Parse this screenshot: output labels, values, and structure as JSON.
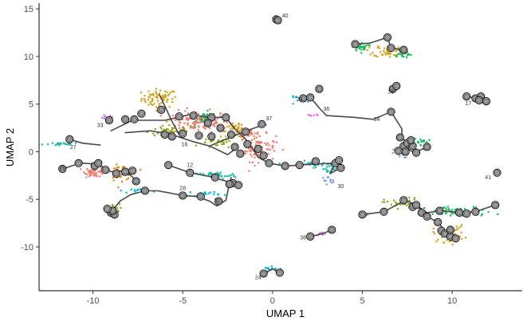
{
  "chart_data": {
    "type": "scatter",
    "xlabel": "UMAP 1",
    "ylabel": "UMAP 2",
    "xlim": [
      -13,
      13.9
    ],
    "ylim": [
      -14.6,
      15.6
    ],
    "xticks": [
      -10,
      -5,
      0,
      5,
      10
    ],
    "xtick_labels": [
      "-10",
      "-5",
      "0",
      "5",
      "10"
    ],
    "yticks": [
      -10,
      -5,
      0,
      5,
      10,
      15
    ],
    "ytick_labels": [
      "-10",
      "-5",
      "0",
      "5",
      "10",
      "15"
    ],
    "grid": false,
    "legend": "none",
    "clusters": [
      {
        "color": "#d3a01c",
        "cx": -6.3,
        "cy": 5.6,
        "sx": 0.9,
        "sy": 0.9,
        "n": 70
      },
      {
        "color": "#f37b6e",
        "cx": -4.2,
        "cy": 3.2,
        "sx": 1.6,
        "sy": 1.0,
        "n": 130
      },
      {
        "color": "#f37b6e",
        "cx": -0.8,
        "cy": 0.4,
        "sx": 0.9,
        "sy": 1.3,
        "n": 90
      },
      {
        "color": "#d3a01c",
        "cx": -2.0,
        "cy": 2.2,
        "sx": 0.8,
        "sy": 0.6,
        "n": 40
      },
      {
        "color": "#93a61b",
        "cx": -5.6,
        "cy": 2.1,
        "sx": 1.2,
        "sy": 0.6,
        "n": 60
      },
      {
        "color": "#93a61b",
        "cx": -3.1,
        "cy": 0.9,
        "sx": 0.8,
        "sy": 0.5,
        "n": 30
      },
      {
        "color": "#19b65a",
        "cx": -3.7,
        "cy": 3.5,
        "sx": 0.5,
        "sy": 0.6,
        "n": 30
      },
      {
        "color": "#f37b6e",
        "cx": -9.9,
        "cy": -2.1,
        "sx": 0.5,
        "sy": 0.5,
        "n": 50
      },
      {
        "color": "#e8841a",
        "cx": -8.4,
        "cy": -2.2,
        "sx": 0.6,
        "sy": 0.7,
        "n": 50
      },
      {
        "color": "#93a61b",
        "cx": -8.9,
        "cy": -6.0,
        "sx": 0.35,
        "sy": 0.45,
        "n": 30
      },
      {
        "color": "#1fb8ad",
        "cx": -3.2,
        "cy": -2.5,
        "sx": 1.1,
        "sy": 0.35,
        "n": 45
      },
      {
        "color": "#f37b6e",
        "cx": -1.3,
        "cy": 2.0,
        "sx": 0.4,
        "sy": 0.4,
        "n": 25
      },
      {
        "color": "#19b65a",
        "cx": 5.0,
        "cy": 11.0,
        "sx": 0.5,
        "sy": 0.4,
        "n": 30
      },
      {
        "color": "#d3a01c",
        "cx": 6.4,
        "cy": 10.6,
        "sx": 0.7,
        "sy": 0.6,
        "n": 45
      },
      {
        "color": "#19b65a",
        "cx": 7.2,
        "cy": 10.3,
        "sx": 0.5,
        "sy": 0.5,
        "n": 25
      },
      {
        "color": "#19b65a",
        "cx": 11.4,
        "cy": 5.4,
        "sx": 0.4,
        "sy": 0.2,
        "n": 20
      },
      {
        "color": "#8a9fee",
        "cx": 7.1,
        "cy": -0.2,
        "sx": 0.4,
        "sy": 0.4,
        "n": 25
      },
      {
        "color": "#19b65a",
        "cx": 8.0,
        "cy": 1.0,
        "sx": 0.6,
        "sy": 0.4,
        "n": 25
      },
      {
        "color": "#93a61b",
        "cx": 7.2,
        "cy": -5.4,
        "sx": 0.9,
        "sy": 0.5,
        "n": 35
      },
      {
        "color": "#19b65a",
        "cx": 10.4,
        "cy": -6.3,
        "sx": 1.7,
        "sy": 0.5,
        "n": 65
      },
      {
        "color": "#d3a01c",
        "cx": 9.8,
        "cy": -8.6,
        "sx": 0.8,
        "sy": 0.8,
        "n": 50
      },
      {
        "color": "#1fb8ad",
        "cx": 2.2,
        "cy": -1.3,
        "sx": 1.1,
        "sy": 0.3,
        "n": 30
      },
      {
        "color": "#1fb8ad",
        "cx": 3.2,
        "cy": -1.8,
        "sx": 0.4,
        "sy": 0.5,
        "n": 20
      },
      {
        "color": "#8a9fee",
        "cx": 3.1,
        "cy": -3.0,
        "sx": 0.3,
        "sy": 0.3,
        "n": 12
      },
      {
        "color": "#1fb8ad",
        "cx": -11.6,
        "cy": 0.8,
        "sx": 1.0,
        "sy": 0.15,
        "n": 20
      },
      {
        "color": "#00b2e0",
        "cx": 1.6,
        "cy": 5.5,
        "sx": 0.6,
        "sy": 0.3,
        "n": 15
      },
      {
        "color": "#00b2e0",
        "cx": -7.2,
        "cy": -4.1,
        "sx": 0.6,
        "sy": 0.2,
        "n": 15
      },
      {
        "color": "#00b2e0",
        "cx": -3.8,
        "cy": -4.4,
        "sx": 0.8,
        "sy": 0.25,
        "n": 20
      },
      {
        "color": "#c77cff",
        "cx": -9.3,
        "cy": 3.6,
        "sx": 0.4,
        "sy": 0.2,
        "n": 12
      },
      {
        "color": "#c77cff",
        "cx": -0.5,
        "cy": 2.9,
        "sx": 0.3,
        "sy": 0.2,
        "n": 10
      },
      {
        "color": "#00b2e0",
        "cx": 0.0,
        "cy": -12.3,
        "sx": 0.4,
        "sy": 0.2,
        "n": 15
      },
      {
        "color": "#e76bf3",
        "cx": 2.7,
        "cy": -8.6,
        "sx": 0.3,
        "sy": 0.15,
        "n": 8
      },
      {
        "color": "#e76bf3",
        "cx": 5.3,
        "cy": -6.6,
        "sx": 0.3,
        "sy": 0.15,
        "n": 8
      },
      {
        "color": "#e76bf3",
        "cx": 2.2,
        "cy": 3.8,
        "sx": 0.3,
        "sy": 0.15,
        "n": 6
      }
    ],
    "trajectories": [
      {
        "points": [
          [
            -9.0,
            2.2
          ],
          [
            -7.8,
            3.3
          ],
          [
            -6.0,
            3.3
          ],
          [
            -4.6,
            3.9
          ],
          [
            -3.5,
            3.6
          ],
          [
            -2.6,
            3.6
          ]
        ]
      },
      {
        "points": [
          [
            -6.3,
            6.0
          ],
          [
            -6.0,
            4.8
          ],
          [
            -5.6,
            3.2
          ],
          [
            -5.2,
            1.8
          ]
        ]
      },
      {
        "points": [
          [
            -8.2,
            2.0
          ],
          [
            -6.8,
            2.2
          ],
          [
            -5.6,
            1.8
          ],
          [
            -4.5,
            1.1
          ],
          [
            -3.5,
            0.6
          ],
          [
            -2.5,
            1.4
          ],
          [
            -1.3,
            2.3
          ],
          [
            -0.4,
            2.9
          ]
        ]
      },
      {
        "points": [
          [
            -2.6,
            3.6
          ],
          [
            -2.1,
            2.4
          ],
          [
            -1.5,
            1.3
          ],
          [
            -1.1,
            0.3
          ],
          [
            -0.8,
            -0.6
          ],
          [
            -0.2,
            -1.2
          ]
        ]
      },
      {
        "points": [
          [
            -3.5,
            0.6
          ],
          [
            -2.5,
            -0.3
          ],
          [
            -2.0,
            0.4
          ]
        ]
      },
      {
        "points": [
          [
            -0.2,
            -1.2
          ],
          [
            0.7,
            -1.5
          ],
          [
            1.5,
            -1.4
          ],
          [
            2.3,
            -1.3
          ],
          [
            3.5,
            -1.2
          ],
          [
            3.2,
            -2.3
          ],
          [
            3.8,
            -1.7
          ]
        ]
      },
      {
        "points": [
          [
            -11.3,
            1.3
          ],
          [
            -10.6,
            0.9
          ],
          [
            -9.6,
            0.7
          ]
        ]
      },
      {
        "points": [
          [
            -11.7,
            -1.8
          ],
          [
            -10.7,
            -1.2
          ],
          [
            -9.7,
            -1.3
          ],
          [
            -9.0,
            -2.1
          ],
          [
            -8.2,
            -2.0
          ],
          [
            -7.6,
            -3.0
          ]
        ]
      },
      {
        "points": [
          [
            -9.0,
            -6.4
          ],
          [
            -8.5,
            -5.2
          ],
          [
            -7.9,
            -4.5
          ],
          [
            -7.1,
            -4.1
          ],
          [
            -6.4,
            -4.1
          ],
          [
            -5.8,
            -4.3
          ],
          [
            -5.0,
            -4.6
          ],
          [
            -4.2,
            -4.7
          ],
          [
            -3.5,
            -5.2
          ],
          [
            -3.1,
            -5.7
          ],
          [
            -2.6,
            -5.1
          ],
          [
            -2.4,
            -3.3
          ],
          [
            -2.3,
            -2.7
          ]
        ]
      },
      {
        "points": [
          [
            -5.8,
            -1.4
          ],
          [
            -4.6,
            -2.2
          ],
          [
            -3.5,
            -2.6
          ],
          [
            -2.2,
            -3.3
          ],
          [
            -1.9,
            -3.5
          ]
        ]
      },
      {
        "points": [
          [
            1.7,
            5.6
          ],
          [
            2.2,
            5.5
          ],
          [
            2.6,
            4.6
          ],
          [
            3.0,
            3.8
          ],
          [
            4.6,
            3.6
          ],
          [
            5.6,
            3.4
          ],
          [
            6.6,
            4.2
          ]
        ]
      },
      {
        "points": [
          [
            6.6,
            4.2
          ],
          [
            7.2,
            2.4
          ],
          [
            7.2,
            1.5
          ],
          [
            7.5,
            0.8
          ],
          [
            7.6,
            0.2
          ],
          [
            7.9,
            -0.1
          ],
          [
            8.6,
            0.5
          ]
        ]
      },
      {
        "points": [
          [
            5.0,
            -6.6
          ],
          [
            6.2,
            -6.3
          ],
          [
            7.4,
            -5.1
          ],
          [
            8.0,
            -5.6
          ],
          [
            8.6,
            -6.4
          ],
          [
            9.4,
            -6.2
          ],
          [
            10.4,
            -6.4
          ],
          [
            11.3,
            -6.3
          ],
          [
            12.4,
            -5.6
          ]
        ]
      },
      {
        "points": [
          [
            8.0,
            -5.6
          ],
          [
            8.6,
            -6.8
          ],
          [
            9.2,
            -7.4
          ],
          [
            9.6,
            -8.3
          ],
          [
            10.2,
            -9.1
          ]
        ]
      },
      {
        "points": [
          [
            4.6,
            11.3
          ],
          [
            5.4,
            11.4
          ],
          [
            6.4,
            12.0
          ],
          [
            6.6,
            10.9
          ],
          [
            7.3,
            10.7
          ]
        ]
      },
      {
        "points": [
          [
            -0.5,
            -12.8
          ],
          [
            0.0,
            -12.3
          ],
          [
            0.4,
            -12.7
          ]
        ]
      },
      {
        "points": [
          [
            2.1,
            -8.9
          ],
          [
            2.8,
            -8.6
          ],
          [
            3.3,
            -8.2
          ]
        ]
      },
      {
        "points": [
          [
            10.8,
            5.8
          ],
          [
            11.4,
            5.6
          ],
          [
            11.9,
            5.3
          ]
        ]
      },
      {
        "points": [
          [
            6.7,
            6.6
          ],
          [
            6.9,
            6.9
          ]
        ]
      }
    ],
    "branch_points": [
      [
        0.2,
        13.9
      ],
      [
        0.3,
        13.8
      ],
      [
        6.7,
        6.6
      ],
      [
        6.9,
        6.9
      ],
      [
        4.6,
        11.3
      ],
      [
        6.6,
        10.9
      ],
      [
        7.3,
        10.7
      ],
      [
        6.4,
        12.0
      ],
      [
        1.7,
        5.6
      ],
      [
        2.1,
        5.7
      ],
      [
        2.6,
        6.6
      ],
      [
        6.6,
        4.2
      ],
      [
        10.8,
        5.8
      ],
      [
        11.3,
        5.6
      ],
      [
        11.6,
        5.8
      ],
      [
        11.9,
        5.3
      ],
      [
        11.5,
        5.4
      ],
      [
        7.1,
        1.5
      ],
      [
        7.3,
        0.6
      ],
      [
        7.5,
        0.9
      ],
      [
        7.8,
        0.6
      ],
      [
        7.4,
        0.0
      ],
      [
        7.0,
        0.1
      ],
      [
        8.6,
        0.5
      ],
      [
        8.0,
        -0.1
      ],
      [
        7.7,
        1.2
      ],
      [
        -6.2,
        4.4
      ],
      [
        -5.2,
        3.7
      ],
      [
        -4.4,
        3.8
      ],
      [
        -3.4,
        3.6
      ],
      [
        -3.6,
        3.0
      ],
      [
        -2.6,
        3.6
      ],
      [
        -2.9,
        2.5
      ],
      [
        -7.3,
        4.0
      ],
      [
        -7.7,
        3.4
      ],
      [
        -8.2,
        3.4
      ],
      [
        -9.1,
        3.3
      ],
      [
        -6.0,
        1.8
      ],
      [
        -5.6,
        1.6
      ],
      [
        -5.0,
        1.9
      ],
      [
        -4.1,
        1.7
      ],
      [
        -3.4,
        1.6
      ],
      [
        -2.3,
        1.8
      ],
      [
        -1.5,
        2.1
      ],
      [
        -0.6,
        2.9
      ],
      [
        -1.4,
        0.8
      ],
      [
        -0.8,
        0.3
      ],
      [
        -0.5,
        -0.4
      ],
      [
        -0.2,
        -1.2
      ],
      [
        -2.1,
        0.5
      ],
      [
        -1.8,
        -0.2
      ],
      [
        -11.3,
        1.3
      ],
      [
        -11.7,
        -1.8
      ],
      [
        -10.8,
        -1.2
      ],
      [
        -9.9,
        -1.5
      ],
      [
        -9.3,
        -1.9
      ],
      [
        -8.7,
        -2.3
      ],
      [
        -8.2,
        -2.1
      ],
      [
        -7.6,
        -3.1
      ],
      [
        -7.8,
        -2.0
      ],
      [
        -9.7,
        -1.2
      ],
      [
        -5.8,
        -1.4
      ],
      [
        -4.6,
        -2.2
      ],
      [
        -3.2,
        -2.7
      ],
      [
        -2.2,
        -3.3
      ],
      [
        -1.9,
        -3.5
      ],
      [
        -2.4,
        -3.4
      ],
      [
        -9.0,
        -6.4
      ],
      [
        -8.8,
        -6.6
      ],
      [
        -8.9,
        -6.2
      ],
      [
        -9.2,
        -6.0
      ],
      [
        -7.1,
        -4.1
      ],
      [
        -5.0,
        -4.6
      ],
      [
        -4.0,
        -4.7
      ],
      [
        -3.0,
        -5.2
      ],
      [
        0.7,
        -1.5
      ],
      [
        1.5,
        -1.4
      ],
      [
        2.4,
        -1.0
      ],
      [
        3.5,
        -1.2
      ],
      [
        3.7,
        -0.9
      ],
      [
        3.8,
        -1.7
      ],
      [
        12.5,
        -2.2
      ],
      [
        5.0,
        -6.6
      ],
      [
        6.2,
        -6.3
      ],
      [
        7.3,
        -5.1
      ],
      [
        7.8,
        -5.8
      ],
      [
        8.0,
        -5.6
      ],
      [
        8.3,
        -6.4
      ],
      [
        8.6,
        -6.8
      ],
      [
        9.3,
        -6.2
      ],
      [
        10.4,
        -6.4
      ],
      [
        10.8,
        -6.5
      ],
      [
        11.3,
        -6.3
      ],
      [
        12.4,
        -5.6
      ],
      [
        9.4,
        -8.3
      ],
      [
        9.6,
        -8.6
      ],
      [
        9.9,
        -8.9
      ],
      [
        10.2,
        -9.1
      ],
      [
        9.2,
        -7.4
      ],
      [
        9.9,
        -8.2
      ],
      [
        2.1,
        -8.9
      ],
      [
        3.3,
        -8.2
      ],
      [
        -0.5,
        -12.8
      ],
      [
        0.4,
        -12.7
      ]
    ],
    "cluster_labels": [
      {
        "text": "40",
        "x": 0.7,
        "y": 14.1
      },
      {
        "text": "39",
        "x": 6.6,
        "y": 6.1
      },
      {
        "text": "23",
        "x": 1.5,
        "y": 5.3
      },
      {
        "text": "36",
        "x": 3.0,
        "y": 4.3
      },
      {
        "text": "34",
        "x": 5.8,
        "y": 3.2
      },
      {
        "text": "17",
        "x": 10.9,
        "y": 4.9
      },
      {
        "text": "33",
        "x": -9.6,
        "y": 2.6
      },
      {
        "text": "37",
        "x": -0.2,
        "y": 3.3
      },
      {
        "text": "27",
        "x": -11.1,
        "y": 0.3
      },
      {
        "text": "16",
        "x": -4.9,
        "y": 0.6
      },
      {
        "text": "26",
        "x": -11.7,
        "y": -1.9
      },
      {
        "text": "12",
        "x": -4.6,
        "y": -1.6
      },
      {
        "text": "28",
        "x": -5.0,
        "y": -4.0
      },
      {
        "text": "32",
        "x": -3.1,
        "y": -5.3
      },
      {
        "text": "30",
        "x": 3.8,
        "y": -3.8
      },
      {
        "text": "41",
        "x": 12.0,
        "y": -2.9
      },
      {
        "text": "38",
        "x": 1.7,
        "y": -9.2
      },
      {
        "text": "24",
        "x": -0.8,
        "y": -13.4
      }
    ]
  }
}
